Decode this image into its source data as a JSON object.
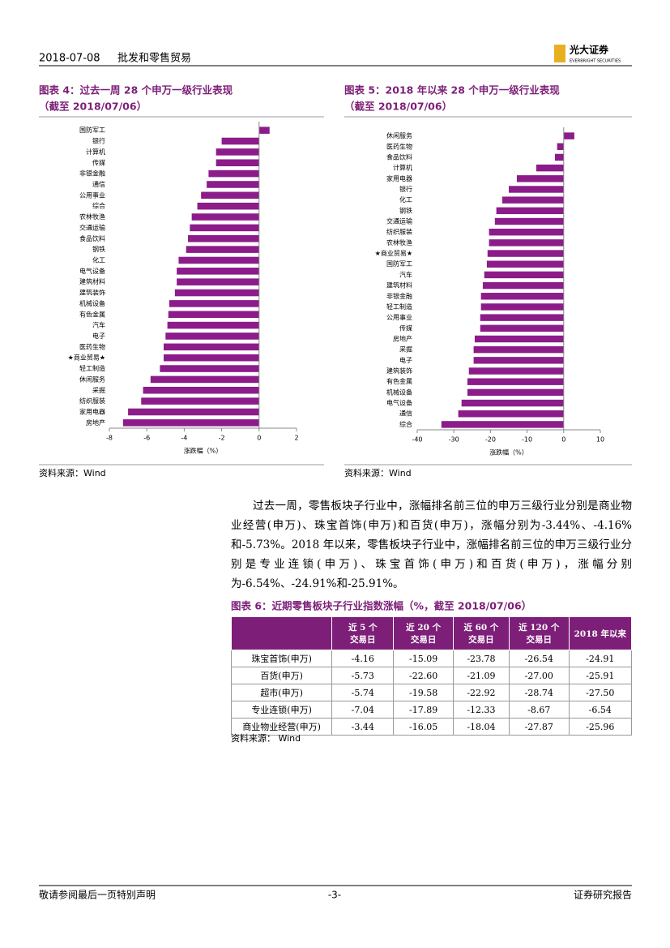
{
  "header": {
    "date": "2018-07-08",
    "title": "批发和零售贸易",
    "brand": "光大证券",
    "brand_en": "EVERBRIGHT SECURITIES"
  },
  "chart_data": [
    {
      "type": "bar",
      "orientation": "horizontal",
      "title": "图表 4：过去一周 28 个申万一级行业表现",
      "subtitle": "（截至 2018/07/06）",
      "categories": [
        "国防军工",
        "银行",
        "计算机",
        "传媒",
        "非银金融",
        "通信",
        "公用事业",
        "综合",
        "农林牧渔",
        "交通运输",
        "食品饮料",
        "钢铁",
        "化工",
        "电气设备",
        "建筑材料",
        "建筑装饰",
        "机械设备",
        "有色金属",
        "汽车",
        "电子",
        "医药生物",
        "★商业贸易★",
        "轻工制造",
        "休闲服务",
        "采掘",
        "纺织服装",
        "家用电器",
        "房地产"
      ],
      "values": [
        0.56,
        -2.0,
        -2.3,
        -2.3,
        -2.7,
        -2.8,
        -3.1,
        -3.3,
        -3.6,
        -3.7,
        -3.8,
        -3.9,
        -4.3,
        -4.4,
        -4.4,
        -4.5,
        -4.8,
        -4.85,
        -4.9,
        -5.0,
        -5.1,
        -5.1,
        -5.3,
        -5.8,
        -6.2,
        -6.3,
        -7.0,
        -7.27
      ],
      "color": "#8c1c8a",
      "xlim": [
        -8,
        2
      ],
      "xticks": [
        -8,
        -6,
        -4,
        -2,
        0,
        2
      ],
      "xlabel": "涨跌幅（%）",
      "source": "资料来源：Wind"
    },
    {
      "type": "bar",
      "orientation": "horizontal",
      "title": "图表 5：2018 年以来 28 个申万一级行业表现",
      "subtitle": "（截至 2018/07/06）",
      "categories": [
        "休闲服务",
        "医药生物",
        "食品饮料",
        "计算机",
        "家用电器",
        "银行",
        "化工",
        "钢铁",
        "交通运输",
        "纺织服装",
        "农林牧渔",
        "★商业贸易★",
        "国防军工",
        "汽车",
        "建筑材料",
        "非银金融",
        "轻工制造",
        "公用事业",
        "传媒",
        "房地产",
        "采掘",
        "电子",
        "建筑装饰",
        "有色金属",
        "机械设备",
        "电气设备",
        "通信",
        "综合"
      ],
      "values": [
        2.9,
        -1.8,
        -2.4,
        -7.5,
        -12.8,
        -15.0,
        -16.8,
        -18.4,
        -18.8,
        -20.4,
        -20.4,
        -20.8,
        -21.0,
        -21.7,
        -22.1,
        -22.6,
        -22.6,
        -22.8,
        -22.8,
        -24.3,
        -24.6,
        -24.6,
        -25.9,
        -26.3,
        -26.3,
        -27.9,
        -28.8,
        -33.4
      ],
      "color": "#8c1c8a",
      "xlim": [
        -40,
        10
      ],
      "xticks": [
        -40,
        -30,
        -20,
        -10,
        0,
        10
      ],
      "xlabel": "涨跌幅（%）",
      "source": "资料来源：Wind"
    }
  ],
  "paragraph": "过去一周，零售板块子行业中，涨幅排名前三位的申万三级行业分别是商业物业经营(申万)、珠宝首饰(申万)和百货(申万)，涨幅分别为-3.44%、-4.16%和-5.73%。2018 年以来，零售板块子行业中，涨幅排名前三位的申万三级行业分别是专业连锁(申万)、珠宝首饰(申万)和百货(申万)，涨幅分别为-6.54%、-24.91%和-25.91%。",
  "table": {
    "title": "图表 6：近期零售板块子行业指数涨幅（%，截至 2018/07/06）",
    "header": [
      "近 5 个\n交易日",
      "近 20 个\n交易日",
      "近 60 个\n交易日",
      "近 120 个\n交易日",
      "2018 年以来"
    ],
    "rows": [
      [
        "珠宝首饰(申万)",
        "-4.16",
        "-15.09",
        "-23.78",
        "-26.54",
        "-24.91"
      ],
      [
        "百货(申万)",
        "-5.73",
        "-22.60",
        "-21.09",
        "-27.00",
        "-25.91"
      ],
      [
        "超市(申万)",
        "-5.74",
        "-19.58",
        "-22.92",
        "-28.74",
        "-27.50"
      ],
      [
        "专业连锁(申万)",
        "-7.04",
        "-17.89",
        "-12.33",
        "-8.67",
        "-6.54"
      ],
      [
        "商业物业经营(申万)",
        "-3.44",
        "-16.05",
        "-18.04",
        "-27.87",
        "-25.96"
      ]
    ],
    "source": "资料来源：  Wind"
  },
  "footer": {
    "left": "敬请参阅最后一页特别声明",
    "center": "-3-",
    "right": "证券研究报告"
  }
}
